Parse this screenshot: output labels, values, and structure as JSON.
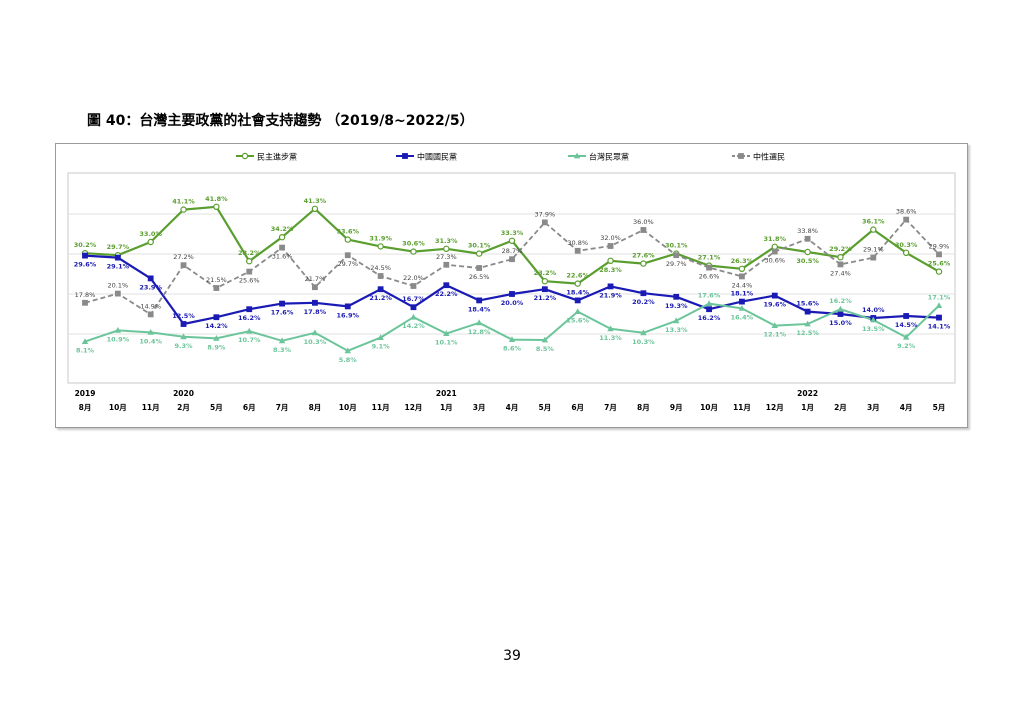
{
  "caption": "圖 40：台灣主要政黨的社會支持趨勢 （2019/8~2022/5）",
  "page_number": "39",
  "colors": {
    "dpp": "#5a9e2f",
    "kmt": "#1a1ab4",
    "tpp": "#6cc59a",
    "neutral": "#8a8a8a",
    "neutral_label": "#444444",
    "frame": "#9a9a9a",
    "grid": "#e0e0e0"
  },
  "chart_data": {
    "type": "line",
    "title": "",
    "xlabel": "",
    "ylabel": "",
    "ylim": [
      0,
      48
    ],
    "grid": true,
    "legend_position": "top",
    "categories": [
      "8月",
      "10月",
      "11月",
      "2月",
      "5月",
      "6月",
      "7月",
      "8月",
      "10月",
      "11月",
      "12月",
      "1月",
      "3月",
      "4月",
      "5月",
      "6月",
      "7月",
      "8月",
      "9月",
      "10月",
      "11月",
      "12月",
      "1月",
      "2月",
      "3月",
      "4月",
      "5月"
    ],
    "year_labels": [
      {
        "index": 0,
        "label": "2019"
      },
      {
        "index": 3,
        "label": "2020"
      },
      {
        "index": 11,
        "label": "2021"
      },
      {
        "index": 22,
        "label": "2022"
      }
    ],
    "series": [
      {
        "name": "民主進步黨",
        "key": "dpp",
        "marker": "circle",
        "dashed": false,
        "values": [
          30.2,
          29.7,
          33.0,
          41.1,
          41.8,
          28.2,
          34.2,
          41.3,
          33.6,
          31.9,
          30.6,
          31.3,
          30.1,
          33.3,
          23.2,
          22.6,
          28.3,
          27.6,
          30.1,
          27.1,
          26.3,
          31.8,
          30.5,
          29.2,
          36.1,
          30.3,
          25.6
        ],
        "labels": [
          "30.2%",
          "29.7%",
          "33.0%",
          "41.1%",
          "41.8%",
          "28.2%",
          "34.2%",
          "41.3%",
          "33.6%",
          "31.9%",
          "30.6%",
          "31.3%",
          "30.1%",
          "33.3%",
          "23.2%",
          "22.6%",
          "28.3%",
          "27.6%",
          "30.1%",
          "27.1%",
          "26.3%",
          "31.8%",
          "30.5%",
          "29.2%",
          "36.1%",
          "30.3%",
          "25.6%"
        ]
      },
      {
        "name": "中國國民黨",
        "key": "kmt",
        "marker": "square",
        "dashed": false,
        "values": [
          29.6,
          29.1,
          23.9,
          12.5,
          14.2,
          16.2,
          17.6,
          17.8,
          16.9,
          21.2,
          16.7,
          22.2,
          18.4,
          20.0,
          21.2,
          18.4,
          21.9,
          20.2,
          19.3,
          16.2,
          18.1,
          19.6,
          15.6,
          15.0,
          14.0,
          14.5,
          14.1
        ],
        "labels": [
          "29.6%",
          "29.1%",
          "23.9%",
          "12.5%",
          "14.2%",
          "16.2%",
          "17.6%",
          "17.8%",
          "16.9%",
          "21.2%",
          "16.7%",
          "22.2%",
          "18.4%",
          "20.0%",
          "21.2%",
          "18.4%",
          "21.9%",
          "20.2%",
          "19.3%",
          "16.2%",
          "18.1%",
          "19.6%",
          "15.6%",
          "15.0%",
          "14.0%",
          "14.5%",
          "14.1%"
        ]
      },
      {
        "name": "台灣民眾黨",
        "key": "tpp",
        "marker": "triangle",
        "dashed": false,
        "values": [
          8.1,
          10.9,
          10.4,
          9.3,
          8.9,
          10.7,
          8.3,
          10.3,
          5.8,
          9.1,
          14.2,
          10.1,
          12.8,
          8.6,
          8.5,
          15.6,
          11.3,
          10.3,
          13.3,
          17.6,
          16.4,
          12.1,
          12.5,
          16.2,
          13.5,
          9.2,
          17.1
        ],
        "labels": [
          "8.1%",
          "10.9%",
          "10.4%",
          "9.3%",
          "8.9%",
          "10.7%",
          "8.3%",
          "10.3%",
          "5.8%",
          "9.1%",
          "14.2%",
          "10.1%",
          "12.8%",
          "8.6%",
          "8.5%",
          "15.6%",
          "11.3%",
          "10.3%",
          "13.3%",
          "17.6%",
          "16.4%",
          "12.1%",
          "12.5%",
          "16.2%",
          "13.5%",
          "9.2%",
          "17.1%"
        ]
      },
      {
        "name": "中性選民",
        "key": "neutral",
        "marker": "square",
        "dashed": true,
        "values": [
          17.8,
          20.1,
          14.9,
          27.2,
          21.5,
          25.6,
          31.6,
          21.7,
          29.7,
          24.5,
          22.0,
          27.3,
          26.5,
          28.7,
          37.9,
          30.8,
          32.0,
          36.0,
          29.7,
          26.6,
          24.4,
          30.6,
          33.8,
          27.4,
          29.1,
          38.6,
          29.9
        ],
        "labels": [
          "17.8%",
          "20.1%",
          "14.9%",
          "27.2%",
          "21.5%",
          "25.6%",
          "31.6%",
          "21.7%",
          "29.7%",
          "24.5%",
          "22.0%",
          "27.3%",
          "26.5%",
          "28.7%",
          "37.9%",
          "30.8%",
          "32.0%",
          "36.0%",
          "29.7%",
          "26.6%",
          "24.4%",
          "30.6%",
          "33.8%",
          "27.4%",
          "29.1%",
          "38.6%",
          "29.9%"
        ]
      }
    ]
  }
}
